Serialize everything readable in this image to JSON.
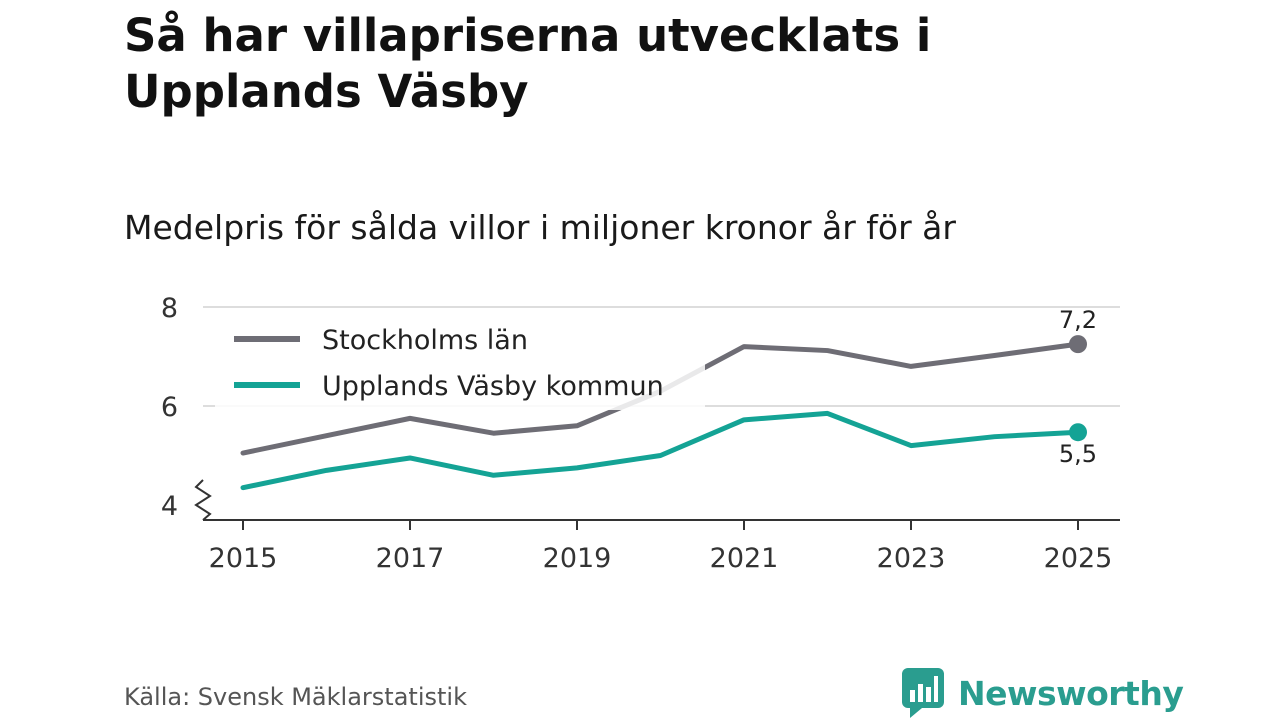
{
  "title": "Så har villapriserna utvecklats i Upplands Väsby",
  "subtitle": "Medelpris för sålda villor i miljoner kronor år för år",
  "source": "Källa: Svensk Mäklarstatistik",
  "brand": "Newsworthy",
  "chart_data": {
    "type": "line",
    "x": [
      2015,
      2016,
      2017,
      2018,
      2019,
      2020,
      2021,
      2022,
      2023,
      2024,
      2025
    ],
    "x_ticks": [
      "2015",
      "2017",
      "2019",
      "2021",
      "2023",
      "2025"
    ],
    "y_ticks": [
      "4",
      "6",
      "8"
    ],
    "ylim": [
      4,
      8
    ],
    "y_axis_break": true,
    "grid": true,
    "legend_placement": "top-left",
    "series": [
      {
        "name": "Stockholms län",
        "color": "#6e6d75",
        "values": [
          5.05,
          5.4,
          5.75,
          5.45,
          5.6,
          6.3,
          7.2,
          7.12,
          6.8,
          7.02,
          7.25
        ],
        "end_label": "7,2"
      },
      {
        "name": "Upplands Väsby kommun",
        "color": "#14a395",
        "values": [
          4.35,
          4.7,
          4.95,
          4.6,
          4.75,
          5.0,
          5.72,
          5.85,
          5.2,
          5.38,
          5.47
        ],
        "end_label": "5,5"
      }
    ]
  }
}
